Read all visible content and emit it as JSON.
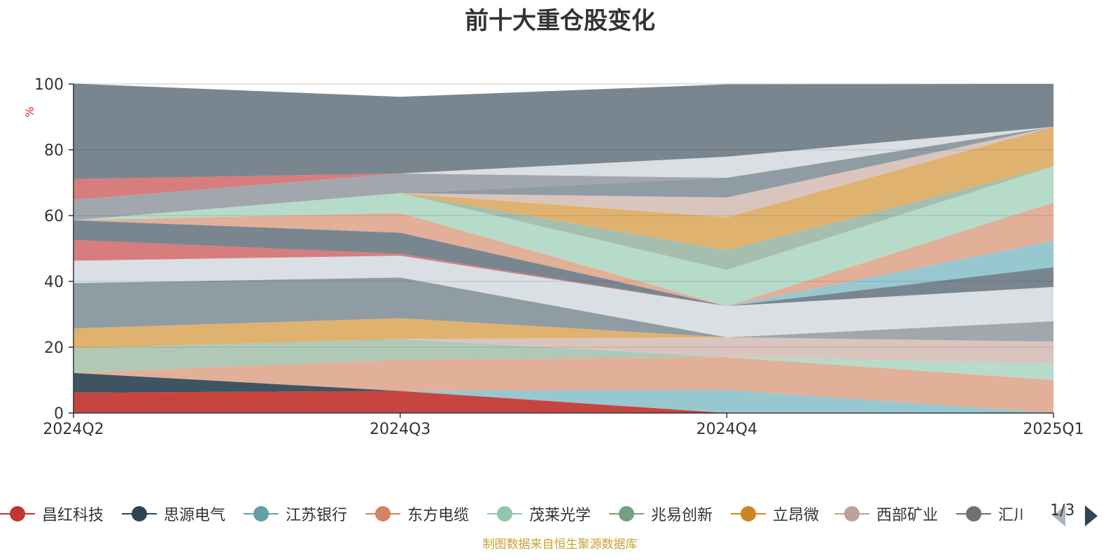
{
  "chart_data": {
    "type": "area",
    "title": "前十大重仓股变化",
    "ylabel": "%",
    "xlabel": "",
    "ylim": [
      0,
      100
    ],
    "yticks": [
      0,
      20,
      40,
      60,
      80,
      100
    ],
    "grid": true,
    "categories": [
      "2024Q2",
      "2024Q3",
      "2024Q4",
      "2025Q1"
    ],
    "series": [
      {
        "name": "昌红科技",
        "color": "#c23531",
        "values": [
          6.2,
          6.7,
          0,
          0
        ]
      },
      {
        "name": "",
        "color": "#8fc3cb",
        "values": [
          0,
          0,
          7.0,
          0
        ]
      },
      {
        "name": "",
        "color": "#2f4554",
        "values": [
          6.0,
          0,
          0,
          0
        ]
      },
      {
        "name": "",
        "color": "#e0a890",
        "values": [
          0,
          9.5,
          10.0,
          10.0
        ]
      },
      {
        "name": "",
        "color": "#b0d8c4",
        "values": [
          0,
          0,
          0,
          5.0
        ]
      },
      {
        "name": "",
        "color": "#a8c4b0",
        "values": [
          7.5,
          6.3,
          0,
          0
        ]
      },
      {
        "name": "",
        "color": "#d6c0b8",
        "values": [
          0,
          0,
          6.0,
          6.7
        ]
      },
      {
        "name": "",
        "color": "#dcab64",
        "values": [
          6.0,
          6.3,
          0,
          0
        ]
      },
      {
        "name": "",
        "color": "#9aa0a6",
        "values": [
          0,
          0,
          0,
          6.2
        ]
      },
      {
        "name": "",
        "color": "#87949b",
        "values": [
          13.8,
          12.4,
          0,
          0
        ]
      },
      {
        "name": "",
        "color": "#d7dce2",
        "values": [
          6.8,
          6.6,
          9.5,
          10.4
        ]
      },
      {
        "name": "",
        "color": "#6e7c87",
        "values": [
          0,
          0,
          0,
          6.0
        ]
      },
      {
        "name": "",
        "color": "#8fc3cb",
        "values": [
          0,
          0,
          0,
          8.0
        ]
      },
      {
        "name": "",
        "color": "#e0a890",
        "values": [
          0,
          0,
          0,
          11.7
        ]
      },
      {
        "name": "",
        "color": "#d47272",
        "values": [
          6.3,
          0.6,
          0,
          0
        ]
      },
      {
        "name": "",
        "color": "#6e7c87",
        "values": [
          6.0,
          6.4,
          0,
          0
        ]
      },
      {
        "name": "",
        "color": "#e0a890",
        "values": [
          0,
          6.0,
          0,
          0
        ]
      },
      {
        "name": "",
        "color": "#b0d8c4",
        "values": [
          0,
          6.0,
          11.0,
          11.0
        ]
      },
      {
        "name": "",
        "color": "#9db8a6",
        "values": [
          0,
          0,
          6.0,
          0
        ]
      },
      {
        "name": "",
        "color": "#dcab64",
        "values": [
          0,
          0,
          10.0,
          12.0
        ]
      },
      {
        "name": "",
        "color": "#d6c0b8",
        "values": [
          0,
          0,
          6.0,
          0
        ]
      },
      {
        "name": "",
        "color": "#87949b",
        "values": [
          0,
          0,
          6.0,
          0
        ]
      },
      {
        "name": "",
        "color": "#9aa0a6",
        "values": [
          6.2,
          6.0,
          0,
          0
        ]
      },
      {
        "name": "",
        "color": "#d47272",
        "values": [
          6.3,
          0,
          0,
          0
        ]
      },
      {
        "name": "",
        "color": "#d7dce2",
        "values": [
          0,
          0,
          6.4,
          0
        ]
      },
      {
        "name": "",
        "color": "#6e7c87",
        "values": [
          29.0,
          23.3,
          22.0,
          13.0
        ]
      }
    ]
  },
  "legend": {
    "items": [
      {
        "label": "昌红科技",
        "color": "#c23531"
      },
      {
        "label": "思源电气",
        "color": "#2f4554"
      },
      {
        "label": "江苏银行",
        "color": "#61a0a8"
      },
      {
        "label": "东方电缆",
        "color": "#d48265"
      },
      {
        "label": "茂莱光学",
        "color": "#91c7ae"
      },
      {
        "label": "兆易创新",
        "color": "#749f83"
      },
      {
        "label": "立昂微",
        "color": "#ca8622"
      },
      {
        "label": "西部矿业",
        "color": "#bda29a"
      },
      {
        "label": "汇川技术",
        "color": "#6e7074"
      }
    ],
    "page": "1/3"
  },
  "source_note": "制图数据来自恒生聚源数据库"
}
